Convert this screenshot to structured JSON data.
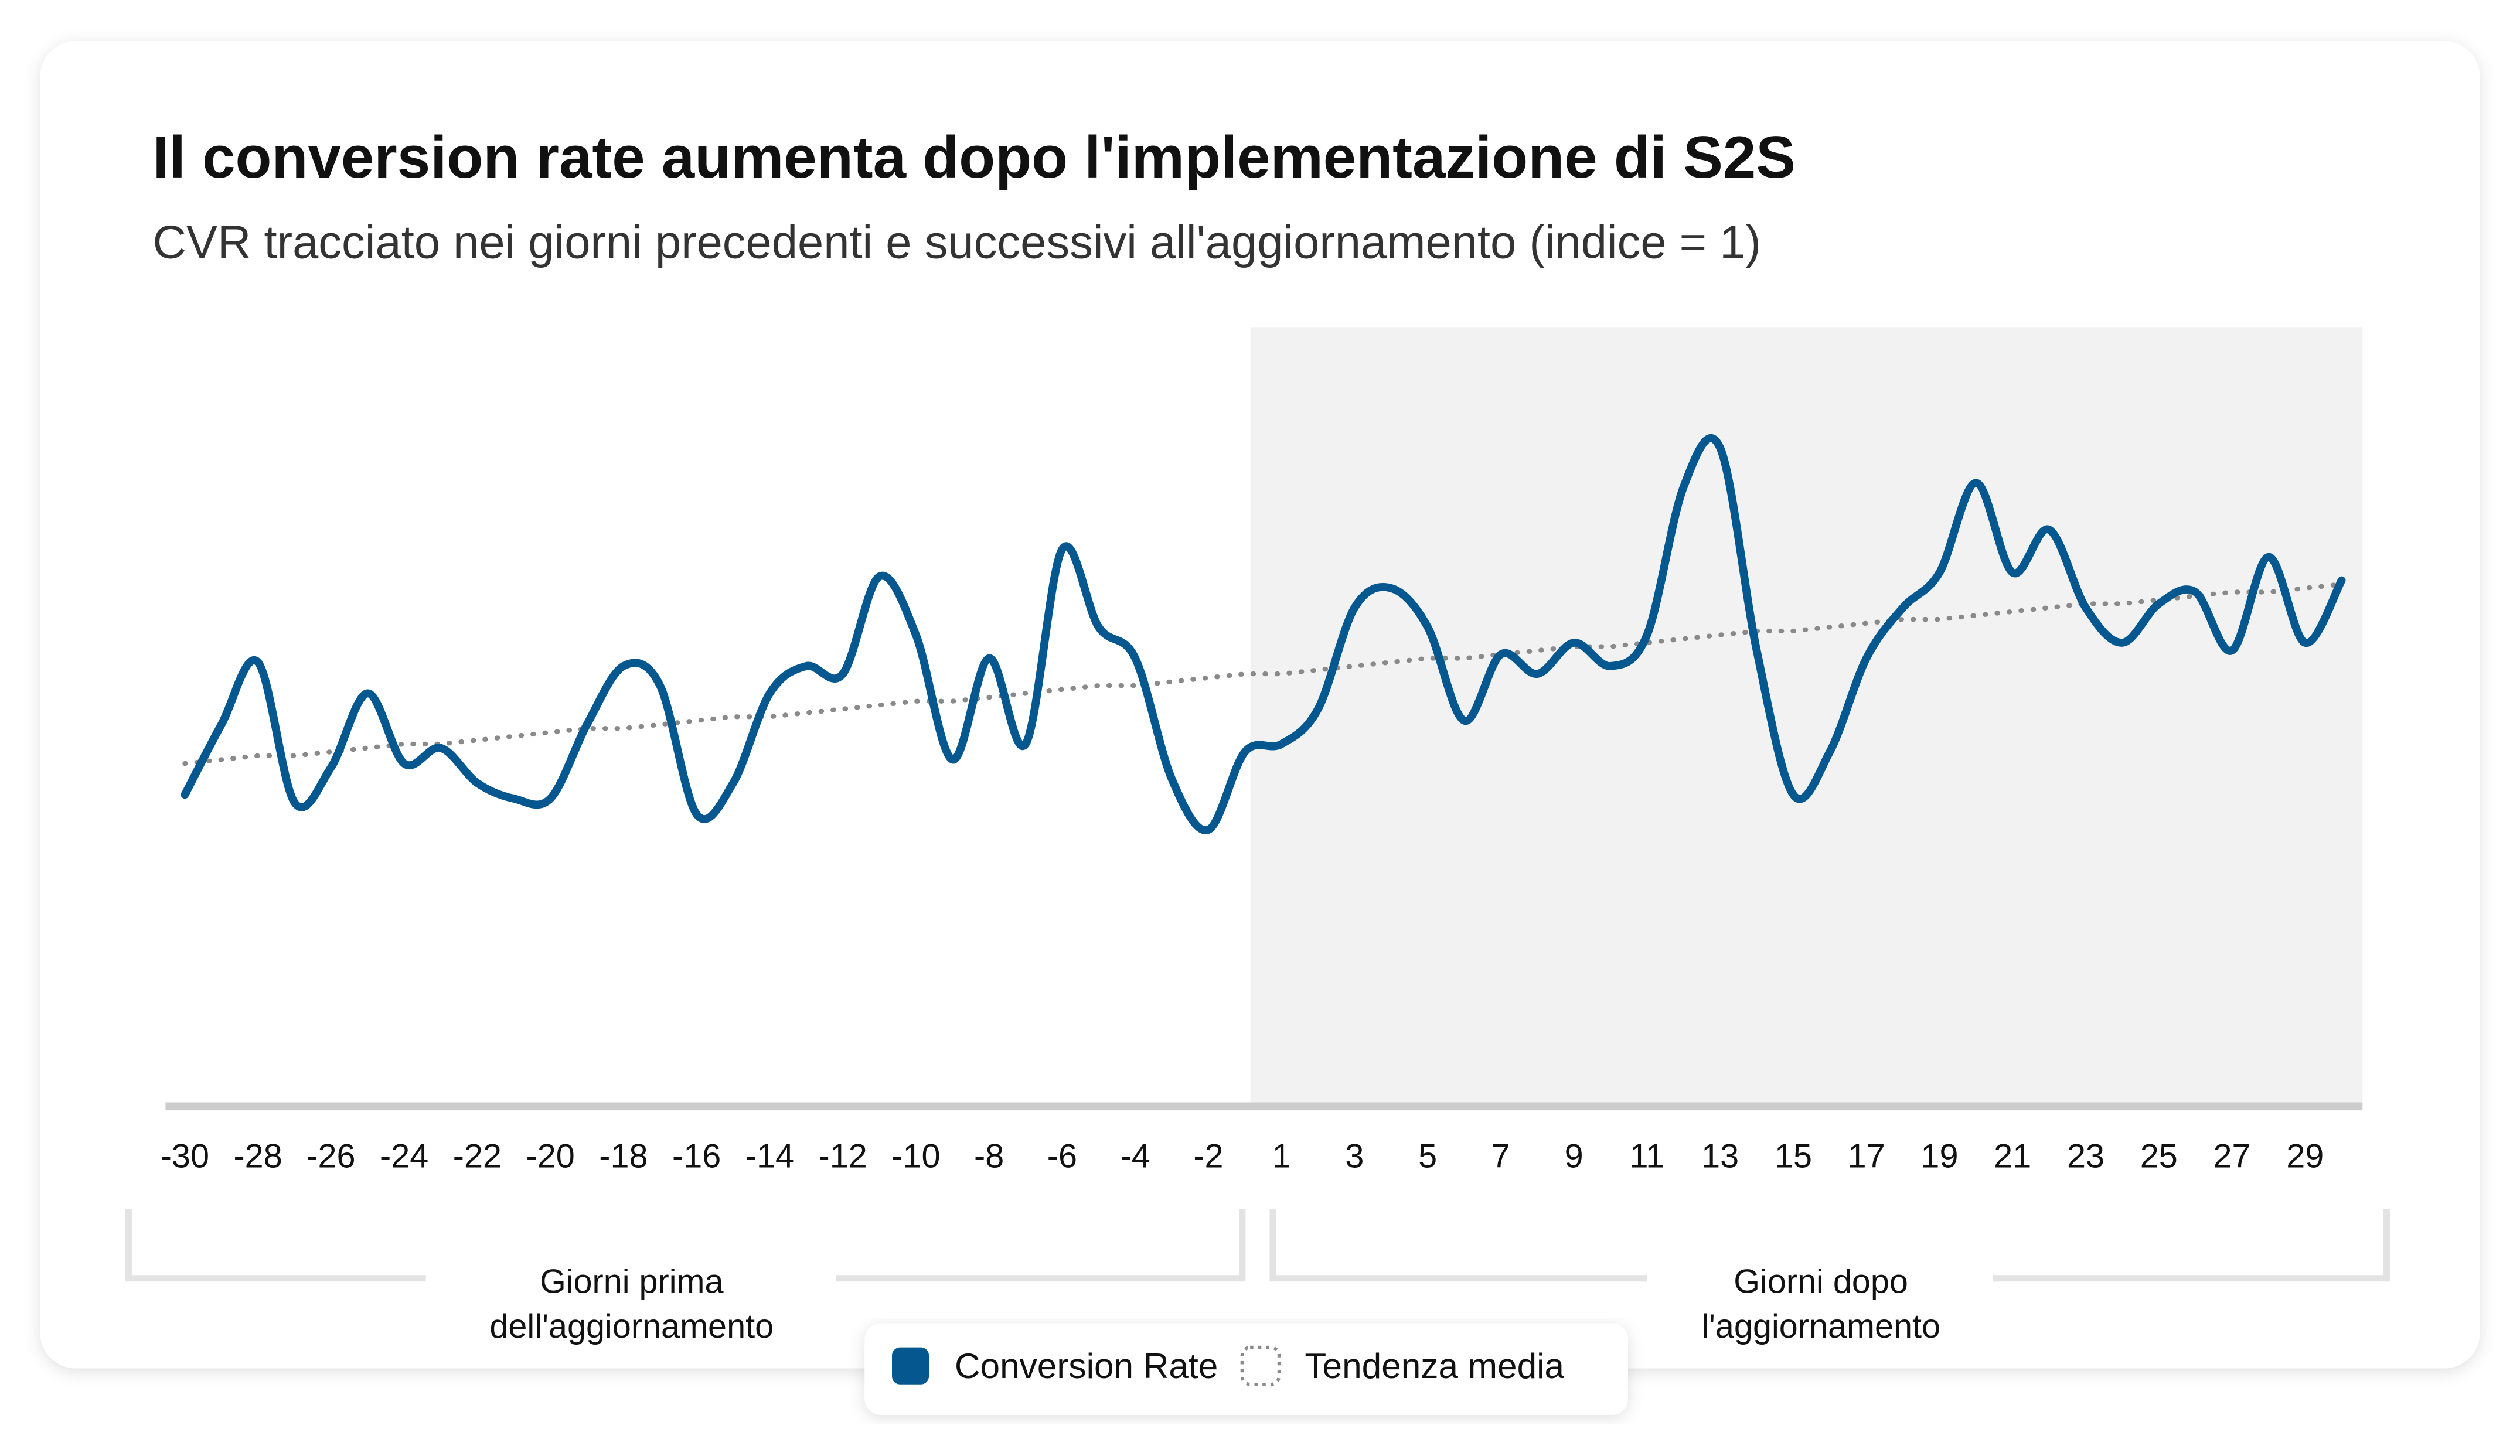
{
  "chart_data": {
    "type": "line",
    "title": "Il conversion rate aumenta dopo l'implementazione di S2S",
    "subtitle": "CVR tracciato nei giorni precedenti e successivi all'aggiornamento (indice = 1)",
    "categories": [
      -30,
      null,
      -28,
      null,
      -26,
      null,
      -24,
      null,
      -22,
      null,
      -20,
      null,
      -18,
      null,
      -16,
      null,
      -14,
      null,
      -12,
      null,
      -10,
      null,
      -8,
      null,
      -6,
      null,
      -4,
      null,
      -2,
      null,
      1,
      null,
      3,
      null,
      5,
      null,
      7,
      null,
      9,
      null,
      11,
      null,
      13,
      null,
      15,
      null,
      17,
      null,
      19,
      null,
      21,
      null,
      23,
      null,
      25,
      null,
      27,
      null,
      29,
      null
    ],
    "series": [
      {
        "name": "Conversion Rate",
        "color": "#04588f",
        "values": [
          0.8,
          0.98,
          1.14,
          0.78,
          0.87,
          1.06,
          0.88,
          0.92,
          0.83,
          0.79,
          0.79,
          0.98,
          1.13,
          1.08,
          0.75,
          0.83,
          1.06,
          1.13,
          1.11,
          1.36,
          1.21,
          0.89,
          1.15,
          0.93,
          1.43,
          1.23,
          1.15,
          0.84,
          0.71,
          0.91,
          0.93,
          1.02,
          1.28,
          1.33,
          1.23,
          0.99,
          1.16,
          1.11,
          1.19,
          1.13,
          1.21,
          1.59,
          1.69,
          1.17,
          0.8,
          0.91,
          1.15,
          1.28,
          1.37,
          1.6,
          1.37,
          1.48,
          1.28,
          1.19,
          1.29,
          1.32,
          1.17,
          1.41,
          1.19,
          1.35
        ]
      },
      {
        "name": "Tendenza media",
        "color": "#8a8a8a",
        "dotted": true,
        "values": [
          0.88,
          0.89,
          0.9,
          0.9,
          0.91,
          0.92,
          0.93,
          0.93,
          0.94,
          0.95,
          0.96,
          0.97,
          0.97,
          0.98,
          0.99,
          1.0,
          1.0,
          1.01,
          1.02,
          1.03,
          1.04,
          1.04,
          1.05,
          1.06,
          1.07,
          1.08,
          1.08,
          1.09,
          1.1,
          1.11,
          1.11,
          1.12,
          1.13,
          1.14,
          1.15,
          1.15,
          1.16,
          1.17,
          1.18,
          1.18,
          1.19,
          1.2,
          1.21,
          1.22,
          1.22,
          1.23,
          1.24,
          1.25,
          1.25,
          1.26,
          1.27,
          1.28,
          1.29,
          1.29,
          1.3,
          1.31,
          1.32,
          1.32,
          1.33,
          1.34
        ]
      }
    ],
    "ylim": [
      0,
      2
    ],
    "groups": [
      {
        "label": [
          "Giorni prima",
          "dell'aggiornamento"
        ]
      },
      {
        "label": [
          "Giorni dopo",
          "l'aggiornamento"
        ]
      }
    ]
  }
}
